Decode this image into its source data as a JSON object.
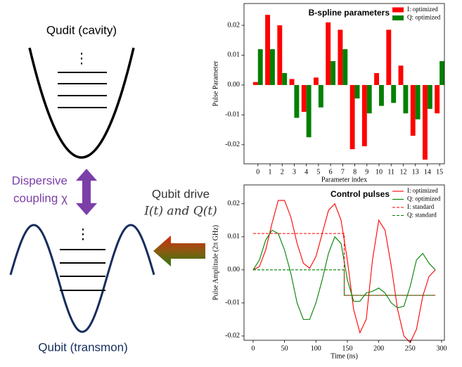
{
  "diagram": {
    "cavity_label": "Qudit (cavity)",
    "cavity_dots": "⋮",
    "coupling_label": [
      "Dispersive",
      "coupling χ"
    ],
    "drive_label": [
      "Qubit drive",
      "I(t) and Q(t)"
    ],
    "transmon_dots": "⋮",
    "transmon_label": "Qubit (transmon)"
  },
  "chart_data": [
    {
      "type": "bar",
      "title": "B-spline parameters",
      "xlabel": "Parameter index",
      "ylabel": "Pulse Parameter",
      "x": [
        0,
        1,
        2,
        3,
        4,
        5,
        6,
        7,
        8,
        9,
        10,
        11,
        12,
        13,
        14,
        15
      ],
      "series": [
        {
          "name": "I: optimized",
          "color": "#ff0000",
          "values": [
            0.001,
            0.0235,
            0.02,
            0.002,
            -0.009,
            0.0025,
            0.021,
            0.0185,
            -0.0215,
            -0.0205,
            0.004,
            0.0185,
            0.0065,
            -0.017,
            -0.025,
            -0.0095
          ]
        },
        {
          "name": "Q: optimized",
          "color": "#008000",
          "values": [
            0.012,
            0.012,
            0.004,
            -0.011,
            -0.0175,
            -0.0075,
            0.008,
            0.012,
            -0.0045,
            -0.0095,
            -0.007,
            -0.006,
            -0.0095,
            -0.0115,
            -0.008,
            0.008
          ]
        }
      ],
      "xlim": [
        -1.15,
        15.4
      ],
      "xticks": [
        0,
        1,
        2,
        3,
        4,
        5,
        6,
        7,
        8,
        9,
        10,
        11,
        12,
        13,
        14,
        15
      ],
      "ylim": [
        -0.0264,
        0.0273
      ],
      "yticks": [
        -0.02,
        -0.01,
        {
          "value": 0,
          "label": "0.00"
        },
        0.01,
        0.02
      ],
      "legend": "upper right"
    },
    {
      "type": "line",
      "title": "Control pulses",
      "xlabel": "Time (ns)",
      "ylabel": "Pulse Amplitude (2π GHz)",
      "series": [
        {
          "name": "I: optimized",
          "color": "#ff0000",
          "linestyle": "solid",
          "x": [
            0,
            10,
            20,
            30,
            40,
            50,
            60,
            70,
            80,
            90,
            100,
            110,
            120,
            130,
            140,
            150,
            160,
            170,
            180,
            190,
            200,
            210,
            220,
            230,
            240,
            250,
            260,
            270,
            280,
            290
          ],
          "values": [
            0,
            0.001,
            0.006,
            0.014,
            0.021,
            0.021,
            0.016,
            0.008,
            0.002,
            0.0005,
            0.004,
            0.011,
            0.018,
            0.02,
            0.015,
            0.003,
            -0.012,
            -0.019,
            -0.015,
            0.003,
            0.015,
            0.012,
            0.001,
            -0.012,
            -0.02,
            -0.022,
            -0.018,
            -0.008,
            -0.002,
            0
          ]
        },
        {
          "name": "Q: optimized",
          "color": "#008000",
          "linestyle": "solid",
          "x": [
            0,
            10,
            20,
            30,
            40,
            50,
            60,
            70,
            80,
            90,
            100,
            110,
            120,
            130,
            140,
            150,
            160,
            170,
            180,
            190,
            200,
            210,
            220,
            230,
            240,
            250,
            260,
            270,
            280,
            290
          ],
          "values": [
            0,
            0.003,
            0.009,
            0.012,
            0.011,
            0.006,
            -0.001,
            -0.01,
            -0.015,
            -0.015,
            -0.01,
            -0.003,
            0.005,
            0.01,
            0.008,
            -0.003,
            -0.0095,
            -0.0095,
            -0.007,
            -0.0065,
            -0.0055,
            -0.007,
            -0.01,
            -0.0115,
            -0.011,
            -0.005,
            0.003,
            0.005,
            0.002,
            0
          ]
        },
        {
          "name": "I: standard",
          "color": "#ff0000",
          "linestyle": "dashed",
          "x": [
            0,
            145,
            145,
            290
          ],
          "values": [
            0.011,
            0.011,
            -0.0077,
            -0.0077
          ]
        },
        {
          "name": "Q: standard",
          "color": "#008000",
          "linestyle": "dashed",
          "x": [
            0,
            145,
            145,
            290
          ],
          "values": [
            0,
            0,
            -0.0077,
            -0.0077
          ]
        }
      ],
      "xlim": [
        -14.5,
        304.5
      ],
      "xticks": [
        0,
        50,
        100,
        150,
        200,
        250,
        300
      ],
      "ylim": [
        -0.0213,
        0.0257
      ],
      "yticks": [
        -0.02,
        -0.01,
        {
          "value": 0,
          "label": "0.00"
        },
        0.01,
        0.02
      ],
      "legend": "upper right"
    }
  ]
}
